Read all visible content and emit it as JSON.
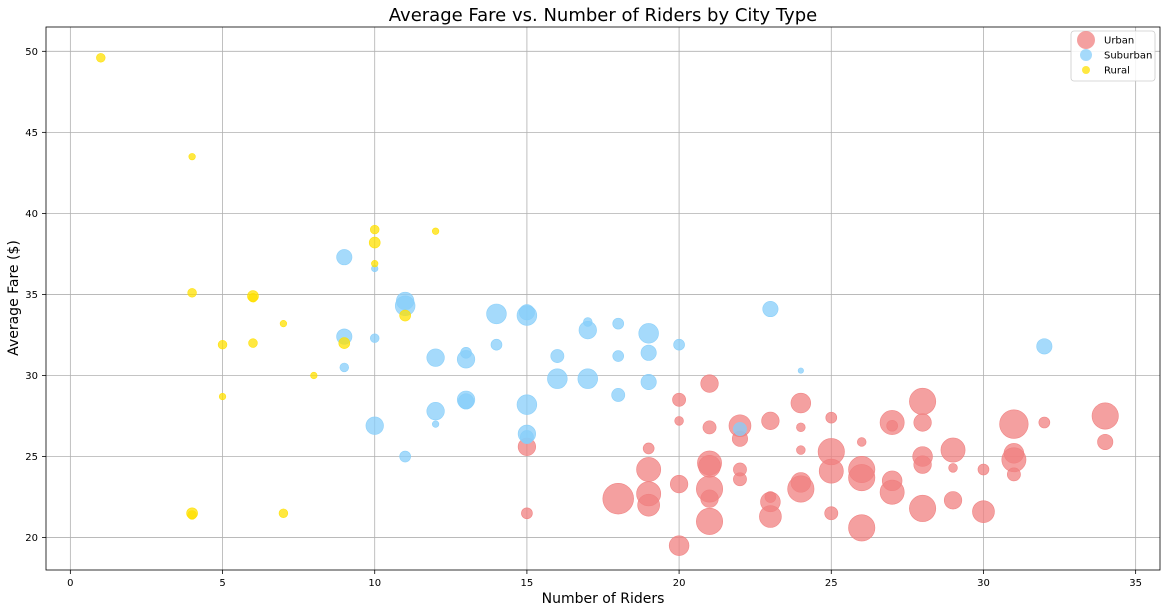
{
  "chart_data": {
    "type": "scatter",
    "title": "Average Fare vs. Number of Riders by City Type",
    "xlabel": "Number of Riders",
    "ylabel": "Average Fare ($)",
    "xlim": [
      -0.8,
      35.8
    ],
    "ylim": [
      18,
      51.5
    ],
    "xticks": [
      0,
      5,
      10,
      15,
      20,
      25,
      30,
      35
    ],
    "yticks": [
      20,
      25,
      30,
      35,
      40,
      45,
      50
    ],
    "grid": true,
    "legend_position": "top-right",
    "marker_size_note": "bubble size scales with a per-city value",
    "series": [
      {
        "name": "Urban",
        "color": "#F08080",
        "points": [
          [
            20,
            28.5,
            4
          ],
          [
            20,
            27.2,
            2
          ],
          [
            20,
            23.3,
            6
          ],
          [
            20,
            19.5,
            7
          ],
          [
            21,
            29.5,
            6
          ],
          [
            21,
            26.8,
            4
          ],
          [
            21,
            24.6,
            9
          ],
          [
            21,
            24.4,
            8
          ],
          [
            21,
            23.0,
            10
          ],
          [
            21,
            22.4,
            6
          ],
          [
            21,
            21.0,
            10
          ],
          [
            22,
            26.9,
            8
          ],
          [
            22,
            26.1,
            5
          ],
          [
            22,
            24.2,
            4
          ],
          [
            22,
            23.6,
            4
          ],
          [
            23,
            27.2,
            6
          ],
          [
            23,
            22.5,
            3
          ],
          [
            23,
            22.2,
            7
          ],
          [
            23,
            21.3,
            8
          ],
          [
            24,
            28.3,
            7
          ],
          [
            24,
            26.8,
            2
          ],
          [
            24,
            25.4,
            2
          ],
          [
            24,
            23.4,
            7
          ],
          [
            24,
            23.0,
            10
          ],
          [
            25,
            27.4,
            3
          ],
          [
            25,
            25.3,
            10
          ],
          [
            25,
            24.1,
            9
          ],
          [
            25,
            21.5,
            4
          ],
          [
            26,
            25.9,
            2
          ],
          [
            26,
            24.2,
            10
          ],
          [
            26,
            23.7,
            10
          ],
          [
            26,
            20.6,
            10
          ],
          [
            27,
            27.1,
            9
          ],
          [
            27,
            26.9,
            3
          ],
          [
            27,
            23.5,
            7
          ],
          [
            27,
            22.8,
            9
          ],
          [
            28,
            28.4,
            10
          ],
          [
            28,
            27.1,
            6
          ],
          [
            28,
            25.0,
            7
          ],
          [
            28,
            24.5,
            6
          ],
          [
            28,
            21.8,
            10
          ],
          [
            29,
            25.4,
            9
          ],
          [
            29,
            24.3,
            2
          ],
          [
            29,
            22.3,
            6
          ],
          [
            30,
            24.2,
            3
          ],
          [
            30,
            21.6,
            8
          ],
          [
            31,
            27.0,
            11
          ],
          [
            31,
            25.2,
            7
          ],
          [
            31,
            24.8,
            9
          ],
          [
            31,
            23.9,
            4
          ],
          [
            32,
            27.1,
            3
          ],
          [
            34,
            27.5,
            10
          ],
          [
            34,
            25.9,
            5
          ],
          [
            15,
            25.6,
            6
          ],
          [
            15,
            21.5,
            3
          ],
          [
            18,
            22.4,
            12
          ],
          [
            19,
            25.5,
            3
          ],
          [
            19,
            24.2,
            9
          ],
          [
            19,
            22.7,
            9
          ],
          [
            19,
            22.0,
            8
          ]
        ]
      },
      {
        "name": "Suburban",
        "color": "#87CEFA",
        "points": [
          [
            9,
            37.3,
            5
          ],
          [
            9,
            32.4,
            5
          ],
          [
            9,
            30.5,
            2
          ],
          [
            10,
            36.6,
            1
          ],
          [
            10,
            32.3,
            2
          ],
          [
            10,
            26.9,
            6
          ],
          [
            11,
            34.6,
            6
          ],
          [
            11,
            34.3,
            7
          ],
          [
            11,
            25.0,
            3
          ],
          [
            12,
            31.1,
            6
          ],
          [
            12,
            27.8,
            6
          ],
          [
            12,
            27.0,
            1
          ],
          [
            13,
            31.4,
            3
          ],
          [
            13,
            31.0,
            6
          ],
          [
            13,
            28.5,
            6
          ],
          [
            13,
            28.4,
            5
          ],
          [
            14,
            33.8,
            7
          ],
          [
            14,
            31.9,
            3
          ],
          [
            15,
            33.9,
            5
          ],
          [
            15,
            33.7,
            7
          ],
          [
            15,
            28.2,
            7
          ],
          [
            15,
            26.4,
            6
          ],
          [
            15,
            26.2,
            4
          ],
          [
            16,
            31.2,
            4
          ],
          [
            16,
            29.8,
            7
          ],
          [
            17,
            33.3,
            2
          ],
          [
            17,
            32.8,
            6
          ],
          [
            17,
            29.8,
            7
          ],
          [
            18,
            33.2,
            3
          ],
          [
            18,
            31.2,
            3
          ],
          [
            18,
            28.8,
            4
          ],
          [
            19,
            32.6,
            7
          ],
          [
            19,
            31.4,
            5
          ],
          [
            19,
            29.6,
            5
          ],
          [
            20,
            31.9,
            3
          ],
          [
            22,
            26.7,
            4
          ],
          [
            23,
            34.1,
            5
          ],
          [
            24,
            30.3,
            0.5
          ],
          [
            32,
            31.8,
            5
          ]
        ]
      },
      {
        "name": "Rural",
        "color": "#FFE000",
        "points": [
          [
            1,
            49.6,
            2
          ],
          [
            4,
            43.5,
            1
          ],
          [
            4,
            35.1,
            2
          ],
          [
            4,
            21.5,
            3
          ],
          [
            4,
            21.4,
            2
          ],
          [
            5,
            31.9,
            2
          ],
          [
            5,
            28.7,
            1
          ],
          [
            6,
            34.9,
            3
          ],
          [
            6,
            34.8,
            2
          ],
          [
            6,
            32.0,
            2
          ],
          [
            7,
            33.2,
            1
          ],
          [
            7,
            21.5,
            2
          ],
          [
            8,
            30.0,
            1
          ],
          [
            9,
            32.0,
            3
          ],
          [
            10,
            39.0,
            2
          ],
          [
            10,
            38.2,
            3
          ],
          [
            10,
            36.9,
            1
          ],
          [
            11,
            33.7,
            3
          ],
          [
            12,
            38.9,
            1
          ]
        ]
      }
    ]
  }
}
